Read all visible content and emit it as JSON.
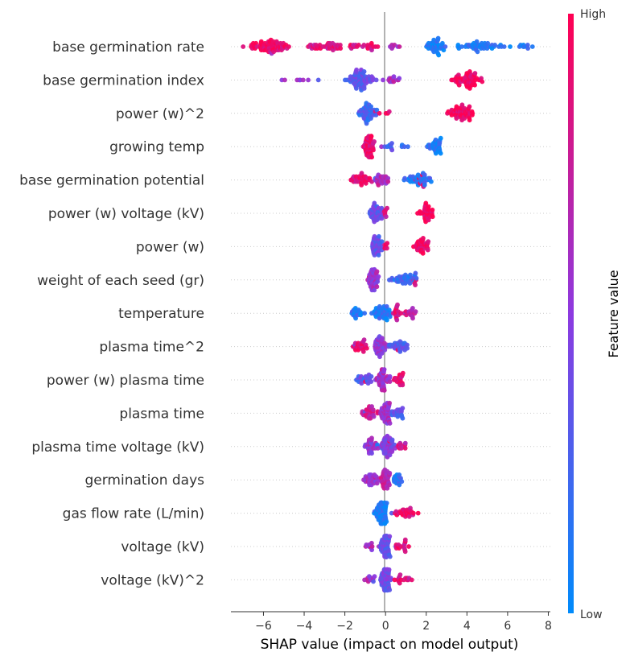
{
  "chart_data": {
    "type": "scatter",
    "subtype": "shap-beeswarm",
    "title": "",
    "xlabel": "SHAP value (impact on model output)",
    "xlim": [
      -7.6,
      8.1
    ],
    "xticks": [
      -6,
      -4,
      -2,
      0,
      2,
      4,
      6,
      8
    ],
    "xtick_labels": [
      "−6",
      "−4",
      "−2",
      "0",
      "2",
      "4",
      "6",
      "8"
    ],
    "colorbar": {
      "label": "Feature value",
      "high_label": "High",
      "low_label": "Low",
      "low_color": "#008bfb",
      "mid_color": "#8d3ae0",
      "high_color": "#ff0052"
    },
    "features": [
      {
        "name": "base germination rate",
        "clusters": [
          [
            -6.9,
            -4.5,
            0.92,
            70
          ],
          [
            -4.0,
            -2.0,
            0.85,
            35
          ],
          [
            -1.8,
            -0.2,
            0.85,
            22
          ],
          [
            0.0,
            0.9,
            0.7,
            6
          ],
          [
            1.9,
            3.0,
            0.1,
            40
          ],
          [
            3.1,
            6.0,
            0.1,
            45
          ],
          [
            6.0,
            7.5,
            0.1,
            10
          ]
        ],
        "singles": [
          [
            -7.0,
            0.85
          ],
          [
            -5.8,
            0.95
          ],
          [
            -5.6,
            0.6
          ],
          [
            -3.8,
            0.9
          ],
          [
            -3.5,
            0.7
          ],
          [
            -2.4,
            0.8
          ],
          [
            0.6,
            0.5
          ]
        ]
      },
      {
        "name": "base germination index",
        "clusters": [
          [
            -5.1,
            -3.9,
            0.5,
            6
          ],
          [
            -2.0,
            -0.4,
            0.35,
            70
          ],
          [
            -0.2,
            0.8,
            0.6,
            14
          ],
          [
            3.0,
            4.9,
            0.97,
            60
          ]
        ],
        "singles": [
          [
            -3.8,
            0.55
          ],
          [
            -3.3,
            0.3
          ],
          [
            -1.2,
            0.4
          ]
        ]
      },
      {
        "name": "power (w)^2",
        "clusters": [
          [
            -1.4,
            -0.3,
            0.25,
            50
          ],
          [
            0.0,
            0.2,
            0.9,
            3
          ],
          [
            2.8,
            4.5,
            0.95,
            55
          ]
        ],
        "singles": [
          [
            -0.5,
            0.8
          ],
          [
            -0.3,
            0.95
          ]
        ]
      },
      {
        "name": "growing temp",
        "clusters": [
          [
            -1.1,
            -0.5,
            0.9,
            50
          ],
          [
            -0.3,
            1.0,
            0.25,
            12
          ],
          [
            2.0,
            2.9,
            0.1,
            35
          ]
        ],
        "singles": [
          [
            1.1,
            0.2
          ],
          [
            -0.2,
            0.6
          ]
        ]
      },
      {
        "name": "base germination potential",
        "clusters": [
          [
            -1.8,
            -0.6,
            0.9,
            35
          ],
          [
            -0.6,
            0.2,
            0.65,
            25
          ],
          [
            0.8,
            2.5,
            0.15,
            40
          ],
          [
            1.3,
            2.0,
            0.9,
            6
          ]
        ],
        "singles": [
          [
            -0.5,
            0.3
          ],
          [
            -0.4,
            0.8
          ]
        ]
      },
      {
        "name": "power (w) voltage (kV)",
        "clusters": [
          [
            -0.8,
            -0.1,
            0.35,
            40
          ],
          [
            -0.1,
            0.1,
            0.8,
            6
          ],
          [
            1.5,
            2.5,
            0.96,
            35
          ]
        ],
        "singles": [
          [
            -0.6,
            0.4
          ],
          [
            0.0,
            0.9
          ]
        ]
      },
      {
        "name": "power (w)",
        "clusters": [
          [
            -0.8,
            -0.1,
            0.35,
            40
          ],
          [
            -0.1,
            0.1,
            0.85,
            6
          ],
          [
            1.2,
            2.2,
            0.96,
            35
          ]
        ],
        "singles": [
          [
            -0.5,
            0.5
          ]
        ]
      },
      {
        "name": "weight of each seed (gr)",
        "clusters": [
          [
            -1.0,
            -0.3,
            0.55,
            45
          ],
          [
            0.0,
            1.6,
            0.2,
            40
          ],
          [
            1.2,
            1.6,
            0.85,
            3
          ]
        ],
        "singles": [
          [
            -0.8,
            0.9
          ],
          [
            -0.5,
            0.7
          ],
          [
            1.5,
            0.9
          ]
        ]
      },
      {
        "name": "temperature",
        "clusters": [
          [
            -1.9,
            -0.8,
            0.15,
            20
          ],
          [
            -0.8,
            0.4,
            0.12,
            45
          ],
          [
            0.3,
            0.8,
            0.85,
            15
          ],
          [
            0.8,
            1.7,
            0.75,
            15
          ]
        ],
        "singles": [
          [
            1.0,
            0.3
          ],
          [
            0.5,
            0.95
          ]
        ]
      },
      {
        "name": "plasma time^2",
        "clusters": [
          [
            -1.7,
            -0.7,
            0.85,
            25
          ],
          [
            -0.7,
            0.2,
            0.5,
            40
          ],
          [
            0.1,
            1.3,
            0.3,
            30
          ]
        ],
        "singles": [
          [
            -1.5,
            0.4
          ],
          [
            0.6,
            0.9
          ]
        ]
      },
      {
        "name": "power (w) plasma time",
        "clusters": [
          [
            -1.6,
            -0.6,
            0.3,
            25
          ],
          [
            -0.6,
            0.3,
            0.6,
            45
          ],
          [
            0.3,
            1.0,
            0.9,
            20
          ]
        ],
        "singles": [
          [
            -1.0,
            0.9
          ],
          [
            -0.3,
            0.8
          ]
        ]
      },
      {
        "name": "plasma time",
        "clusters": [
          [
            -1.2,
            -0.3,
            0.75,
            30
          ],
          [
            -0.3,
            0.4,
            0.6,
            45
          ],
          [
            0.3,
            0.9,
            0.3,
            20
          ]
        ],
        "singles": [
          [
            0.8,
            0.2
          ],
          [
            -1.0,
            0.3
          ]
        ]
      },
      {
        "name": "plasma time voltage (kV)",
        "clusters": [
          [
            -1.1,
            -0.3,
            0.55,
            30
          ],
          [
            -0.3,
            0.5,
            0.45,
            50
          ],
          [
            0.4,
            1.1,
            0.8,
            12
          ]
        ],
        "singles": [
          [
            -0.4,
            0.1
          ],
          [
            0.2,
            0.95
          ]
        ]
      },
      {
        "name": "germination days",
        "clusters": [
          [
            -1.1,
            -0.3,
            0.6,
            30
          ],
          [
            -0.3,
            0.3,
            0.7,
            35
          ],
          [
            0.3,
            0.9,
            0.15,
            20
          ]
        ],
        "singles": [
          [
            -0.9,
            0.3
          ],
          [
            -0.2,
            0.95
          ]
        ]
      },
      {
        "name": "gas flow rate (L/min)",
        "clusters": [
          [
            -0.6,
            0.2,
            0.08,
            70
          ],
          [
            0.2,
            1.7,
            0.9,
            30
          ]
        ],
        "singles": [
          [
            0.3,
            0.3
          ]
        ]
      },
      {
        "name": "voltage (kV)",
        "clusters": [
          [
            -1.1,
            -0.3,
            0.6,
            10
          ],
          [
            -0.3,
            0.3,
            0.35,
            55
          ],
          [
            0.3,
            1.4,
            0.85,
            15
          ]
        ],
        "singles": [
          [
            -0.7,
            0.9
          ],
          [
            0.5,
            0.4
          ]
        ]
      },
      {
        "name": "voltage (kV)^2",
        "clusters": [
          [
            -1.1,
            -0.3,
            0.6,
            10
          ],
          [
            -0.3,
            0.3,
            0.4,
            55
          ],
          [
            0.3,
            1.4,
            0.85,
            15
          ]
        ],
        "singles": [
          [
            -0.6,
            0.3
          ],
          [
            0.6,
            0.95
          ]
        ]
      }
    ]
  }
}
